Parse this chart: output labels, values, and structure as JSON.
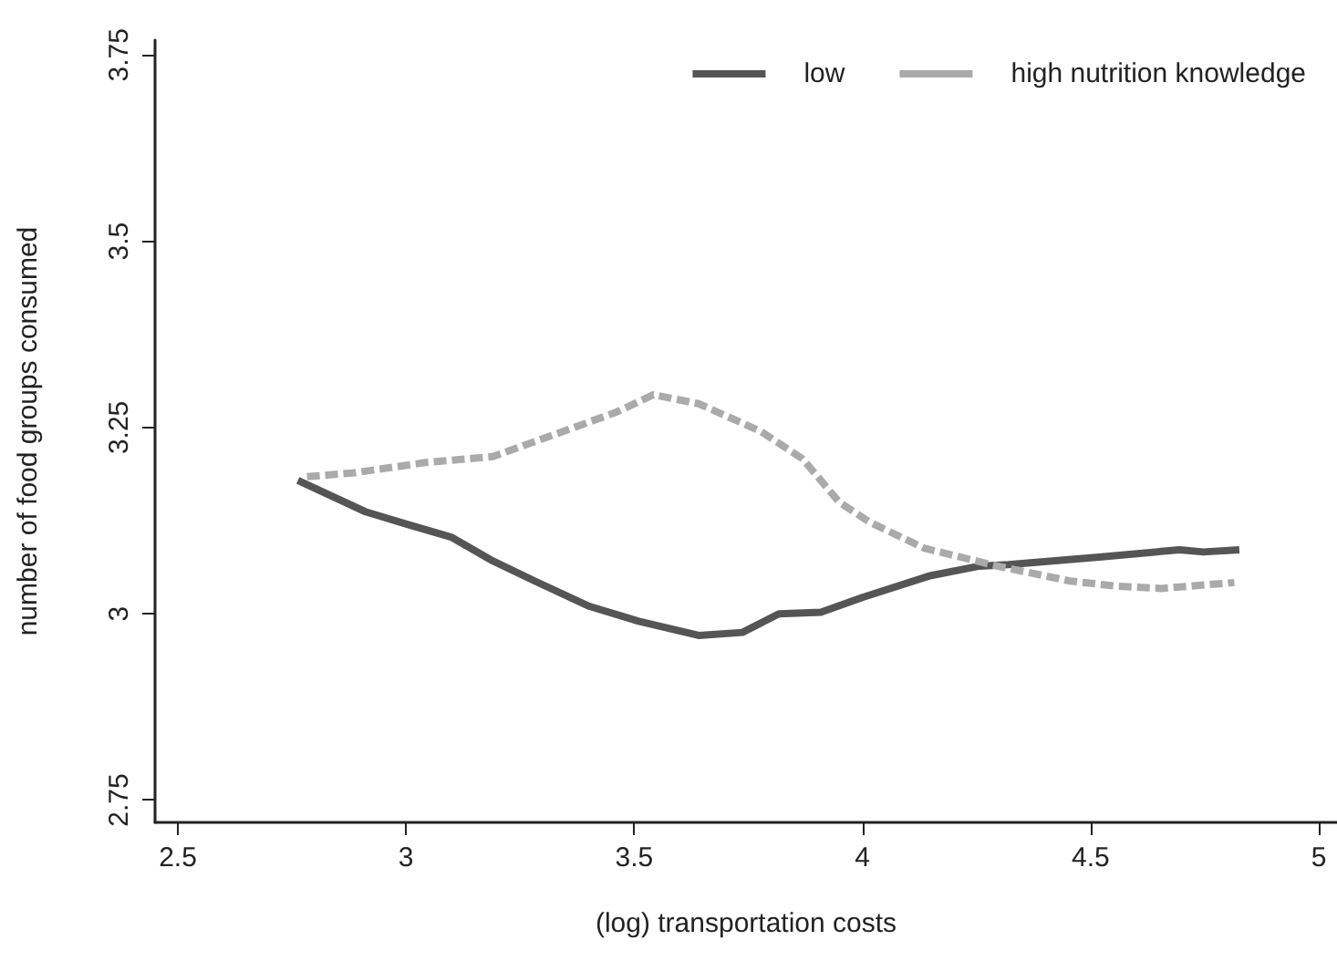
{
  "chart_data": {
    "type": "line",
    "xlabel": "(log) transportation costs",
    "ylabel": "number of food groups consumed",
    "xlim": [
      2.45,
      5.04
    ],
    "ylim": [
      2.72,
      3.77
    ],
    "xticks": [
      2.5,
      3,
      3.5,
      4,
      4.5,
      5
    ],
    "yticks": [
      2.75,
      3,
      3.25,
      3.5,
      3.75
    ],
    "grid": false,
    "legend": "top right",
    "marker": "none",
    "series": [
      {
        "name": "low",
        "color": "#555555",
        "line_style": "solid",
        "x": [
          2.763,
          2.911,
          3.003,
          3.099,
          3.19,
          3.282,
          3.402,
          3.51,
          3.641,
          3.737,
          3.817,
          3.909,
          4.0,
          4.148,
          4.256,
          4.32,
          4.519,
          4.695,
          4.747,
          4.826
        ],
        "values": [
          3.179,
          3.137,
          3.12,
          3.103,
          3.071,
          3.044,
          3.01,
          2.99,
          2.971,
          2.975,
          3.0,
          3.002,
          3.022,
          3.051,
          3.064,
          3.066,
          3.076,
          3.086,
          3.083,
          3.086
        ]
      },
      {
        "name": "high nutrition knowledge",
        "color": "#aaaaaa",
        "line_style": "dashed",
        "x": [
          2.783,
          2.883,
          3.043,
          3.19,
          3.322,
          3.458,
          3.542,
          3.641,
          3.777,
          3.869,
          3.949,
          4.016,
          4.136,
          4.296,
          4.455,
          4.559,
          4.655,
          4.815
        ],
        "values": [
          3.184,
          3.189,
          3.203,
          3.211,
          3.24,
          3.27,
          3.294,
          3.282,
          3.245,
          3.208,
          3.15,
          3.123,
          3.088,
          3.064,
          3.044,
          3.037,
          3.034,
          3.042
        ]
      }
    ]
  }
}
